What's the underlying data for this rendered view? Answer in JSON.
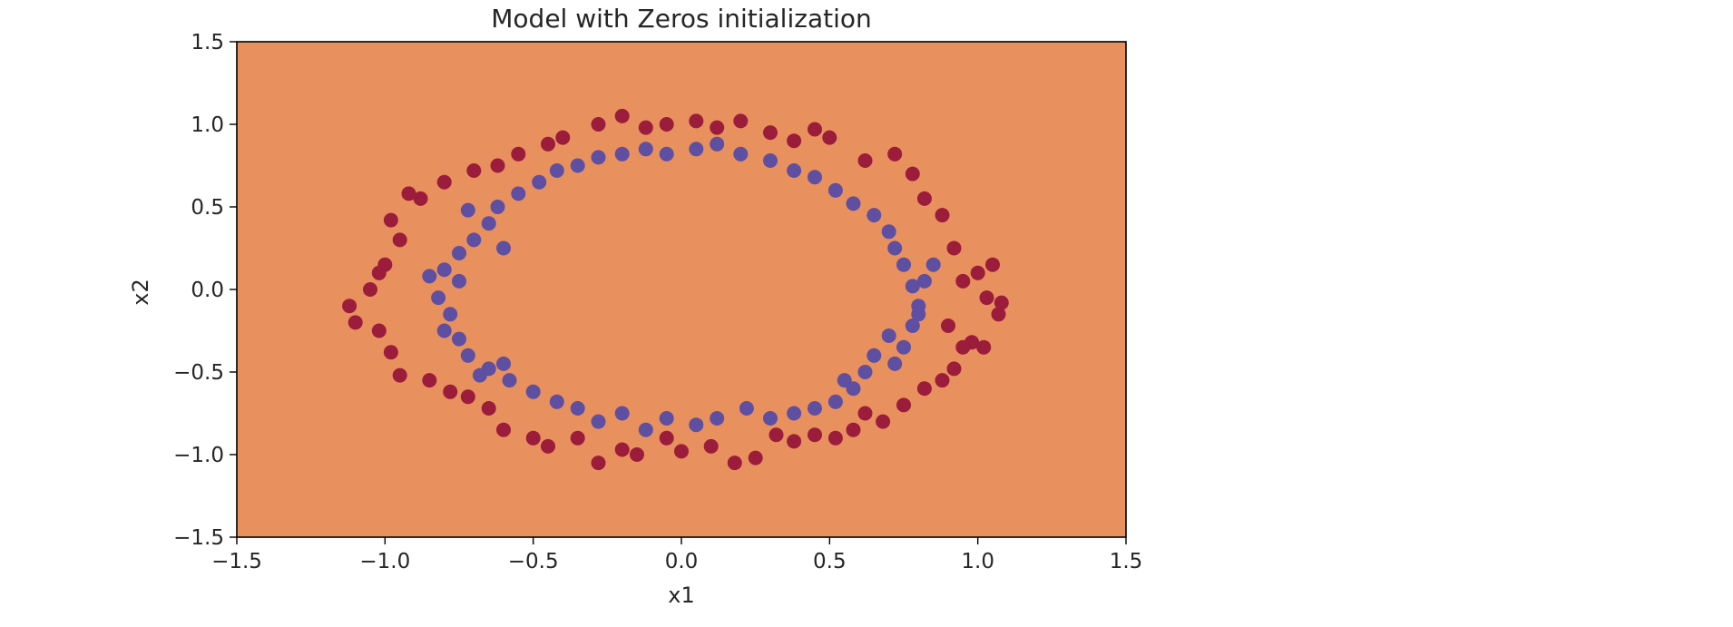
{
  "chart_data": {
    "type": "scatter",
    "title": "Model with Zeros initialization",
    "xlabel": "x1",
    "ylabel": "x2",
    "xlim": [
      -1.5,
      1.5
    ],
    "ylim": [
      -1.5,
      1.5
    ],
    "xticks": [
      -1.5,
      -1.0,
      -0.5,
      0.0,
      0.5,
      1.0,
      1.5
    ],
    "yticks": [
      -1.5,
      -1.0,
      -0.5,
      0.0,
      0.5,
      1.0,
      1.5
    ],
    "xtick_labels": [
      "−1.5",
      "−1.0",
      "−0.5",
      "0.0",
      "0.5",
      "1.0",
      "1.5"
    ],
    "ytick_labels": [
      "−1.5",
      "−1.0",
      "−0.5",
      "0.0",
      "0.5",
      "1.0",
      "1.5"
    ],
    "grid": false,
    "background_color": "#e8915f",
    "series": [
      {
        "color": "#9b1c3b",
        "points": [
          [
            1.05,
            0.15
          ],
          [
            1.03,
            -0.05
          ],
          [
            1.07,
            -0.15
          ],
          [
            0.98,
            -0.32
          ],
          [
            0.9,
            -0.22
          ],
          [
            0.95,
            0.05
          ],
          [
            0.92,
            0.25
          ],
          [
            0.88,
            0.45
          ],
          [
            0.82,
            0.55
          ],
          [
            0.78,
            0.7
          ],
          [
            0.72,
            0.82
          ],
          [
            0.62,
            0.78
          ],
          [
            0.5,
            0.92
          ],
          [
            0.45,
            0.97
          ],
          [
            0.38,
            0.9
          ],
          [
            0.3,
            0.95
          ],
          [
            0.2,
            1.02
          ],
          [
            0.12,
            0.98
          ],
          [
            0.05,
            1.02
          ],
          [
            -0.05,
            1.0
          ],
          [
            -0.12,
            0.98
          ],
          [
            -0.2,
            1.05
          ],
          [
            -0.28,
            1.0
          ],
          [
            -0.4,
            0.92
          ],
          [
            -0.45,
            0.88
          ],
          [
            -0.55,
            0.82
          ],
          [
            -0.62,
            0.75
          ],
          [
            -0.7,
            0.72
          ],
          [
            -0.8,
            0.65
          ],
          [
            -0.88,
            0.55
          ],
          [
            -0.92,
            0.58
          ],
          [
            -0.98,
            0.42
          ],
          [
            -0.95,
            0.3
          ],
          [
            -1.0,
            0.15
          ],
          [
            -1.02,
            0.1
          ],
          [
            -1.05,
            0.0
          ],
          [
            -1.12,
            -0.1
          ],
          [
            -1.1,
            -0.2
          ],
          [
            -1.02,
            -0.25
          ],
          [
            -0.98,
            -0.38
          ],
          [
            -0.95,
            -0.52
          ],
          [
            -0.85,
            -0.55
          ],
          [
            -0.78,
            -0.62
          ],
          [
            -0.72,
            -0.65
          ],
          [
            -0.65,
            -0.72
          ],
          [
            -0.6,
            -0.85
          ],
          [
            -0.5,
            -0.9
          ],
          [
            -0.45,
            -0.95
          ],
          [
            -0.35,
            -0.9
          ],
          [
            -0.28,
            -1.05
          ],
          [
            -0.2,
            -0.97
          ],
          [
            -0.15,
            -1.0
          ],
          [
            -0.05,
            -0.9
          ],
          [
            0.0,
            -0.98
          ],
          [
            0.1,
            -0.95
          ],
          [
            0.18,
            -1.05
          ],
          [
            0.25,
            -1.02
          ],
          [
            0.32,
            -0.88
          ],
          [
            0.38,
            -0.92
          ],
          [
            0.45,
            -0.88
          ],
          [
            0.52,
            -0.9
          ],
          [
            0.58,
            -0.85
          ],
          [
            0.62,
            -0.75
          ],
          [
            0.68,
            -0.8
          ],
          [
            0.75,
            -0.7
          ],
          [
            0.82,
            -0.6
          ],
          [
            0.88,
            -0.55
          ],
          [
            0.92,
            -0.48
          ],
          [
            0.95,
            -0.35
          ],
          [
            1.02,
            -0.35
          ],
          [
            1.08,
            -0.08
          ],
          [
            1.0,
            0.1
          ]
        ]
      },
      {
        "color": "#5e4fa2",
        "points": [
          [
            0.85,
            0.15
          ],
          [
            0.82,
            0.05
          ],
          [
            0.8,
            -0.1
          ],
          [
            0.78,
            -0.22
          ],
          [
            0.75,
            -0.35
          ],
          [
            0.72,
            -0.45
          ],
          [
            0.62,
            -0.5
          ],
          [
            0.58,
            -0.6
          ],
          [
            0.52,
            -0.68
          ],
          [
            0.45,
            -0.72
          ],
          [
            0.38,
            -0.75
          ],
          [
            0.3,
            -0.78
          ],
          [
            0.22,
            -0.72
          ],
          [
            0.12,
            -0.78
          ],
          [
            0.05,
            -0.82
          ],
          [
            -0.05,
            -0.78
          ],
          [
            -0.12,
            -0.85
          ],
          [
            -0.2,
            -0.75
          ],
          [
            -0.28,
            -0.8
          ],
          [
            -0.35,
            -0.72
          ],
          [
            -0.42,
            -0.68
          ],
          [
            -0.5,
            -0.62
          ],
          [
            -0.58,
            -0.55
          ],
          [
            -0.65,
            -0.48
          ],
          [
            -0.72,
            -0.4
          ],
          [
            -0.75,
            -0.3
          ],
          [
            -0.8,
            -0.25
          ],
          [
            -0.78,
            -0.15
          ],
          [
            -0.82,
            -0.05
          ],
          [
            -0.75,
            0.05
          ],
          [
            -0.8,
            0.12
          ],
          [
            -0.75,
            0.22
          ],
          [
            -0.7,
            0.3
          ],
          [
            -0.65,
            0.4
          ],
          [
            -0.62,
            0.5
          ],
          [
            -0.55,
            0.58
          ],
          [
            -0.48,
            0.65
          ],
          [
            -0.42,
            0.72
          ],
          [
            -0.35,
            0.75
          ],
          [
            -0.28,
            0.8
          ],
          [
            -0.2,
            0.82
          ],
          [
            -0.12,
            0.85
          ],
          [
            -0.05,
            0.82
          ],
          [
            0.05,
            0.85
          ],
          [
            0.12,
            0.88
          ],
          [
            0.2,
            0.82
          ],
          [
            0.3,
            0.78
          ],
          [
            0.38,
            0.72
          ],
          [
            0.45,
            0.68
          ],
          [
            0.52,
            0.6
          ],
          [
            0.58,
            0.52
          ],
          [
            0.65,
            0.45
          ],
          [
            0.7,
            0.35
          ],
          [
            0.72,
            0.25
          ],
          [
            0.75,
            0.15
          ],
          [
            0.78,
            0.02
          ],
          [
            0.8,
            -0.15
          ],
          [
            0.7,
            -0.28
          ],
          [
            0.65,
            -0.4
          ],
          [
            0.55,
            -0.55
          ],
          [
            -0.6,
            -0.45
          ],
          [
            -0.68,
            -0.52
          ],
          [
            -0.85,
            0.08
          ],
          [
            -0.72,
            0.48
          ],
          [
            -0.6,
            0.25
          ]
        ]
      }
    ]
  }
}
